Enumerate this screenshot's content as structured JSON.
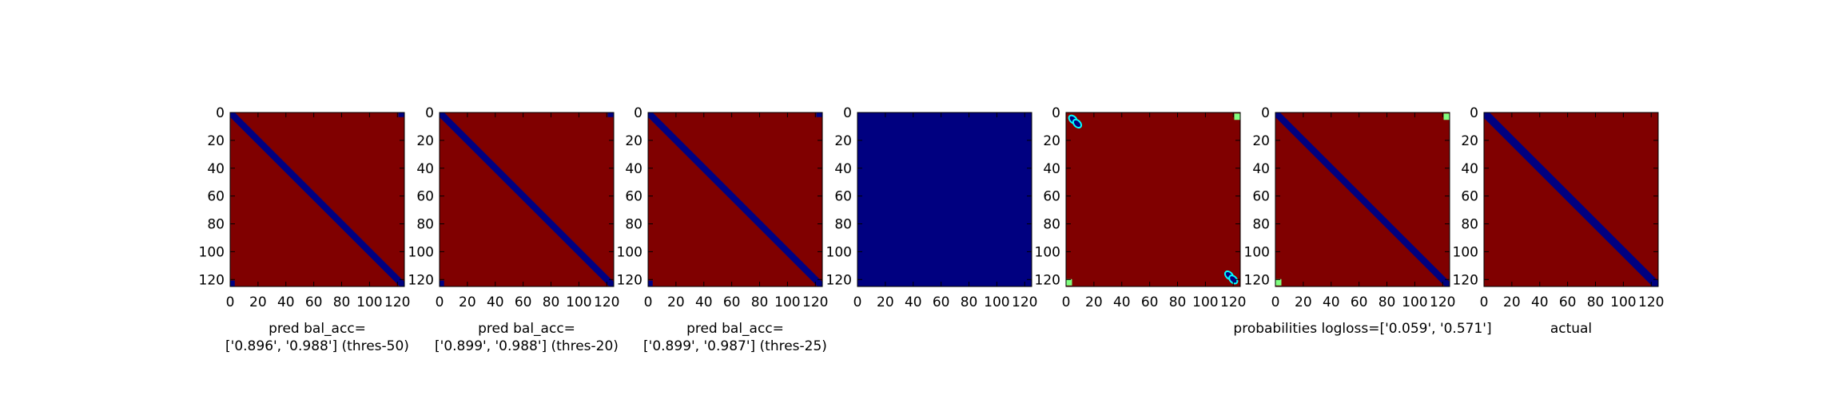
{
  "figure": {
    "background": "#ffffff",
    "colors": {
      "bg_red": "#800000",
      "band_blue": "#000080",
      "cyan": "#00ffff",
      "yellow": "#ffff00",
      "green": "#80ff80"
    }
  },
  "chart_data": [
    {
      "type": "heatmap",
      "xlabel": [
        "pred bal_acc=",
        "['0.896', '0.988'] (thres-50)"
      ],
      "xticks": [
        0,
        20,
        40,
        60,
        80,
        100,
        120
      ],
      "yticks": [
        0,
        20,
        40,
        60,
        80,
        100,
        120
      ],
      "xlim": [
        0,
        125
      ],
      "ylim": [
        125,
        0
      ],
      "grid": false,
      "legend": "none",
      "background_value": "high",
      "background_color": "#800000",
      "pattern": "diagonal band of low values (dark blue) from (0,0) to (125,125), small blue corners at top-right and bottom-left",
      "band_halfwidth": 1.5,
      "corners": [
        {
          "x": 123,
          "y": 1,
          "color": "#000080"
        },
        {
          "x": 1,
          "y": 123,
          "color": "#000080"
        }
      ]
    },
    {
      "type": "heatmap",
      "xlabel": [
        "pred bal_acc=",
        "['0.899', '0.988'] (thres-20)"
      ],
      "xticks": [
        0,
        20,
        40,
        60,
        80,
        100,
        120
      ],
      "yticks": [
        0,
        20,
        40,
        60,
        80,
        100,
        120
      ],
      "xlim": [
        0,
        125
      ],
      "ylim": [
        125,
        0
      ],
      "grid": false,
      "legend": "none",
      "background_value": "high",
      "background_color": "#800000",
      "pattern": "diagonal band of low values (dark blue), small blue corners at top-right and bottom-left",
      "band_halfwidth": 1.5,
      "corners": [
        {
          "x": 123,
          "y": 1,
          "color": "#000080"
        },
        {
          "x": 1,
          "y": 123,
          "color": "#000080"
        }
      ]
    },
    {
      "type": "heatmap",
      "xlabel": [
        "pred bal_acc=",
        "['0.899', '0.987'] (thres-25)"
      ],
      "xticks": [
        0,
        20,
        40,
        60,
        80,
        100,
        120
      ],
      "yticks": [
        0,
        20,
        40,
        60,
        80,
        100,
        120
      ],
      "xlim": [
        0,
        125
      ],
      "ylim": [
        125,
        0
      ],
      "grid": false,
      "legend": "none",
      "background_value": "high",
      "background_color": "#800000",
      "pattern": "diagonal band of low values (dark blue), small blue corners at top-right and bottom-left",
      "band_halfwidth": 1.5,
      "corners": [
        {
          "x": 123,
          "y": 1,
          "color": "#000080"
        },
        {
          "x": 1,
          "y": 123,
          "color": "#000080"
        }
      ]
    },
    {
      "type": "heatmap",
      "xlabel": [],
      "xticks": [
        0,
        20,
        40,
        60,
        80,
        100,
        120
      ],
      "yticks": [
        0,
        20,
        40,
        60,
        80,
        100,
        120
      ],
      "xlim": [
        0,
        125
      ],
      "ylim": [
        125,
        0
      ],
      "grid": false,
      "legend": "none",
      "background_value": "uniform",
      "background_color": "#000080",
      "pattern": "uniform dark blue",
      "band_halfwidth": 0,
      "corners": []
    },
    {
      "type": "heatmap",
      "xlabel": [],
      "xticks": [
        0,
        20,
        40,
        60,
        80,
        100,
        120
      ],
      "yticks": [
        0,
        20,
        40,
        60,
        80,
        100,
        120
      ],
      "xlim": [
        0,
        125
      ],
      "ylim": [
        125,
        0
      ],
      "grid": false,
      "legend": "none",
      "background_value": "high",
      "background_color": "#800000",
      "pattern": "dark red with small blue/cyan blobs near top-left and bottom-right, small green/yellow spots at top-right and bottom-left",
      "band_halfwidth": 0,
      "blobs": [
        {
          "x": 5,
          "y": 5,
          "color": "#000080"
        },
        {
          "x": 8,
          "y": 8,
          "color": "#000080"
        },
        {
          "x": 117,
          "y": 117,
          "color": "#000080"
        },
        {
          "x": 120,
          "y": 120,
          "color": "#000080"
        }
      ],
      "corners": [
        {
          "x": 123,
          "y": 3,
          "color": "#80ff80"
        },
        {
          "x": 2,
          "y": 122,
          "color": "#80ff80"
        }
      ]
    },
    {
      "type": "heatmap",
      "xlabel": [
        "probabilities logloss=['0.059', '0.571']"
      ],
      "xticks": [
        0,
        20,
        40,
        60,
        80,
        100,
        120
      ],
      "yticks": [
        0,
        20,
        40,
        60,
        80,
        100,
        120
      ],
      "xlim": [
        0,
        125
      ],
      "ylim": [
        125,
        0
      ],
      "grid": false,
      "legend": "none",
      "background_value": "high",
      "background_color": "#800000",
      "pattern": "diagonal band of low values (dark blue) with cyan edges near ends, green/yellow spots at top-right and bottom-left",
      "band_halfwidth": 1.5,
      "corners": [
        {
          "x": 123,
          "y": 3,
          "color": "#80ff80"
        },
        {
          "x": 2,
          "y": 122,
          "color": "#80ff80"
        }
      ]
    },
    {
      "type": "heatmap",
      "xlabel": [
        "actual"
      ],
      "xticks": [
        0,
        20,
        40,
        60,
        80,
        100,
        120
      ],
      "yticks": [
        0,
        20,
        40,
        60,
        80,
        100,
        120
      ],
      "xlim": [
        0,
        125
      ],
      "ylim": [
        125,
        0
      ],
      "grid": false,
      "legend": "none",
      "background_value": "high",
      "background_color": "#800000",
      "pattern": "diagonal band of low values (dark blue) from (0,0) to (125,125)",
      "band_halfwidth": 2,
      "corners": []
    }
  ]
}
